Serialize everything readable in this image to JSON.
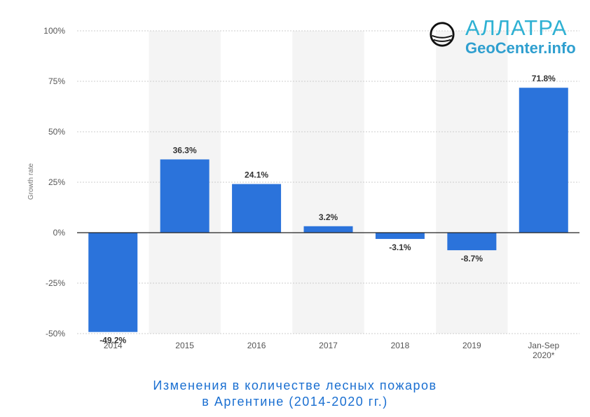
{
  "chart_data": {
    "type": "bar",
    "categories": [
      "2014",
      "2015",
      "2016",
      "2017",
      "2018",
      "2019",
      "Jan-Sep 2020*"
    ],
    "category_lines": [
      [
        "2014"
      ],
      [
        "2015"
      ],
      [
        "2016"
      ],
      [
        "2017"
      ],
      [
        "2018"
      ],
      [
        "2019"
      ],
      [
        "Jan-Sep",
        "2020*"
      ]
    ],
    "values": [
      -49.2,
      36.3,
      24.1,
      3.2,
      -3.1,
      -8.7,
      71.8
    ],
    "value_labels": [
      "-49.2%",
      "36.3%",
      "24.1%",
      "3.2%",
      "-3.1%",
      "-8.7%",
      "71.8%"
    ],
    "ylabel": "Growth rate",
    "ylim": [
      -50,
      100
    ],
    "yticks": [
      100,
      75,
      50,
      25,
      0,
      -25,
      -50
    ],
    "ytick_labels": [
      "100%",
      "75%",
      "50%",
      "25%",
      "0%",
      "-25%",
      "-50%"
    ],
    "grid": true,
    "legend": "none",
    "colors": {
      "bar": "#2b73db",
      "band": "#f4f4f4",
      "grid": "#cccccc",
      "zero_line": "#222222"
    }
  },
  "logo": {
    "line1": "АЛЛАТРА",
    "line2": "GeoCenter.info"
  },
  "caption": {
    "line1": "Изменения в количестве лесных пожаров",
    "line2": "в Аргентине (2014-2020 гг.)"
  }
}
